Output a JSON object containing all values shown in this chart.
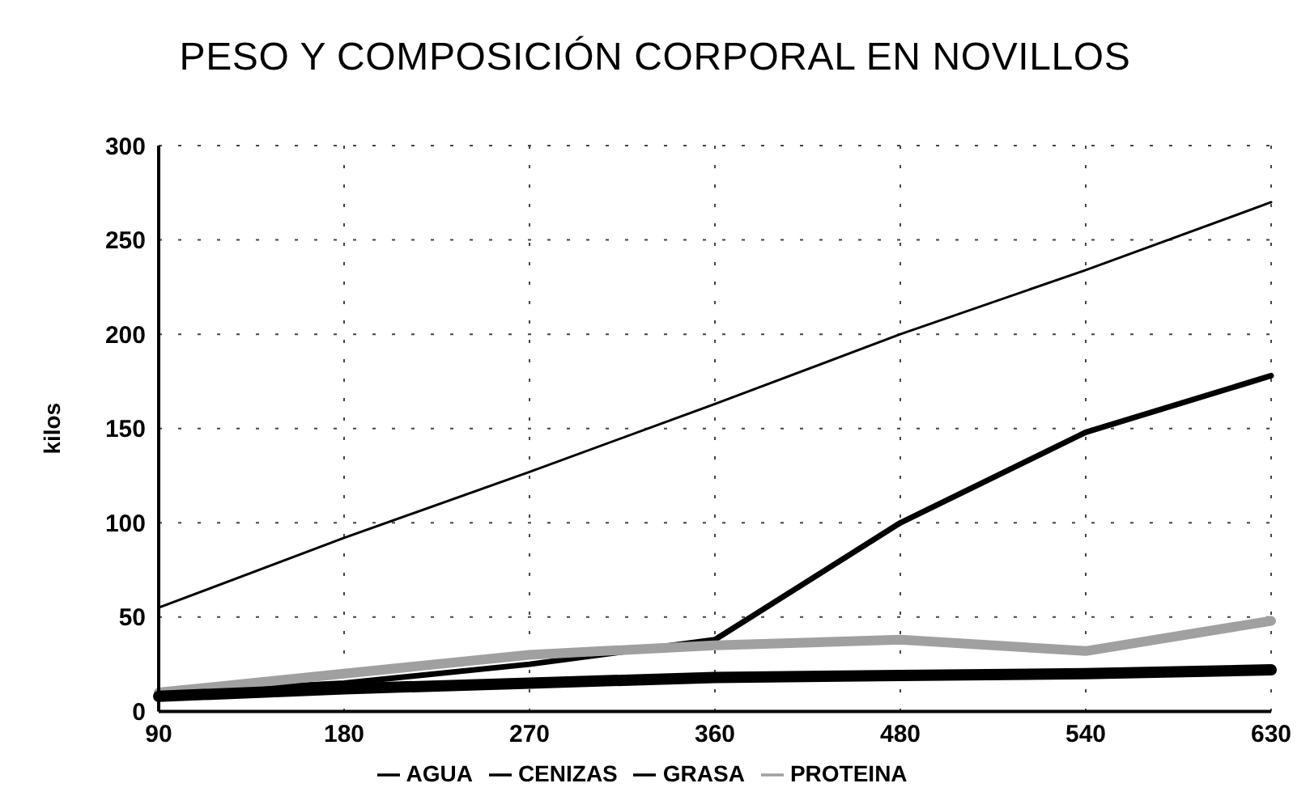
{
  "chart_data": {
    "type": "line",
    "title": "PESO Y COMPOSICIÓN CORPORAL EN NOVILLOS",
    "ylabel": "kilos",
    "categories": [
      "90",
      "180",
      "270",
      "360",
      "480",
      "540",
      "630"
    ],
    "series": [
      {
        "name": "AGUA",
        "color": "#000000",
        "values": [
          55,
          92,
          127,
          163,
          200,
          234,
          270
        ]
      },
      {
        "name": "GRASA",
        "color": "#000000",
        "values": [
          10,
          15,
          25,
          38,
          100,
          148,
          178
        ]
      },
      {
        "name": "PROTEINA",
        "color": "#a0a0a0",
        "values": [
          10,
          20,
          30,
          35,
          38,
          32,
          48
        ]
      },
      {
        "name": "CENIZAS",
        "color": "#000000",
        "values": [
          8,
          12,
          15,
          18,
          19,
          20,
          22
        ]
      }
    ],
    "ylim": [
      0,
      300
    ],
    "yticks": [
      0,
      50,
      100,
      150,
      200,
      250,
      300
    ],
    "grid": true,
    "legend": "bottom",
    "marker": "none",
    "line_style": "solid"
  }
}
